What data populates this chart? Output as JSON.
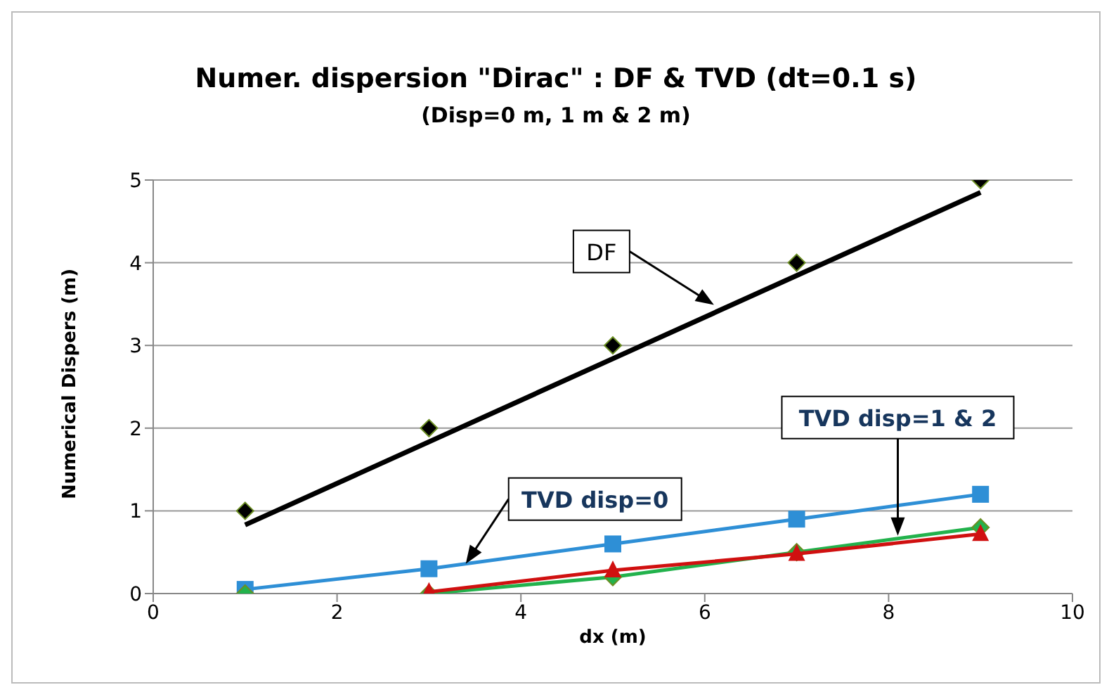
{
  "chart_data": {
    "type": "scatter",
    "title": "Numer. dispersion \"Dirac\" : DF & TVD (dt=0.1 s)",
    "subtitle": "(Disp=0 m, 1 m & 2 m)",
    "xlabel": "dx (m)",
    "ylabel": "Numerical Dispers (m)",
    "series": [
      {
        "type": "line",
        "color": "#000000",
        "marker": "none",
        "x": [
          1,
          9
        ],
        "values": [
          0.83,
          4.85
        ]
      },
      {
        "color": "#000000",
        "marker": "diamond",
        "x": [
          1,
          3,
          5,
          7,
          9
        ],
        "values": [
          1,
          2,
          3,
          4,
          5
        ]
      },
      {
        "type": "line",
        "color": "#2e8fd6",
        "marker": "square",
        "x": [
          1,
          3,
          5,
          7,
          9
        ],
        "values": [
          0.05,
          0.3,
          0.6,
          0.9,
          1.2
        ]
      },
      {
        "color": "#22b24c",
        "marker": "diamond",
        "x": [
          1
        ],
        "values": [
          0
        ]
      },
      {
        "type": "line",
        "color": "#22b24c",
        "marker": "diamond",
        "x": [
          3,
          5,
          7,
          9
        ],
        "values": [
          0,
          0.2,
          0.5,
          0.8
        ]
      },
      {
        "type": "line",
        "color": "#d01010",
        "marker": "triangle",
        "x": [
          3,
          5,
          7,
          9
        ],
        "values": [
          0.02,
          0.28,
          0.48,
          0.72
        ]
      }
    ],
    "annotations": [
      {
        "text": "DF",
        "x": 6.1,
        "y": 3.49
      },
      {
        "text": "TVD disp=0",
        "x": 3.4,
        "y": 0.36
      },
      {
        "text": "TVD disp=1 & 2",
        "x": 8.1,
        "y": 0.7
      }
    ],
    "xlim": [
      0,
      10
    ],
    "xticks": [
      0,
      2,
      4,
      6,
      8,
      10
    ],
    "ylim": [
      0,
      5
    ],
    "yticks": [
      0,
      1,
      2,
      3,
      4,
      5
    ],
    "grid": "y",
    "legend": false,
    "line_style": "solid"
  }
}
